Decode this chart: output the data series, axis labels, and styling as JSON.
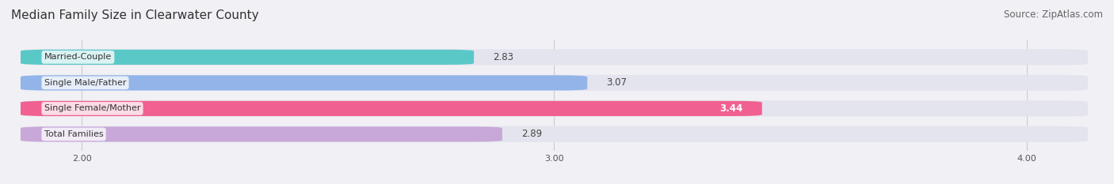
{
  "title": "Median Family Size in Clearwater County",
  "source": "Source: ZipAtlas.com",
  "categories": [
    "Married-Couple",
    "Single Male/Father",
    "Single Female/Mother",
    "Total Families"
  ],
  "values": [
    2.83,
    3.07,
    3.44,
    2.89
  ],
  "bar_colors": [
    "#5BC8C8",
    "#92B4E8",
    "#F06090",
    "#C8A8D8"
  ],
  "value_inside": [
    false,
    false,
    true,
    false
  ],
  "xlim": [
    1.85,
    4.15
  ],
  "xticks": [
    2.0,
    3.0,
    4.0
  ],
  "xtick_labels": [
    "2.00",
    "3.00",
    "4.00"
  ],
  "background_color": "#f0f0f5",
  "bar_bg_color": "#e4e4ee",
  "title_fontsize": 11,
  "source_fontsize": 8.5,
  "label_fontsize": 8,
  "value_fontsize": 8.5,
  "bar_height": 0.62
}
